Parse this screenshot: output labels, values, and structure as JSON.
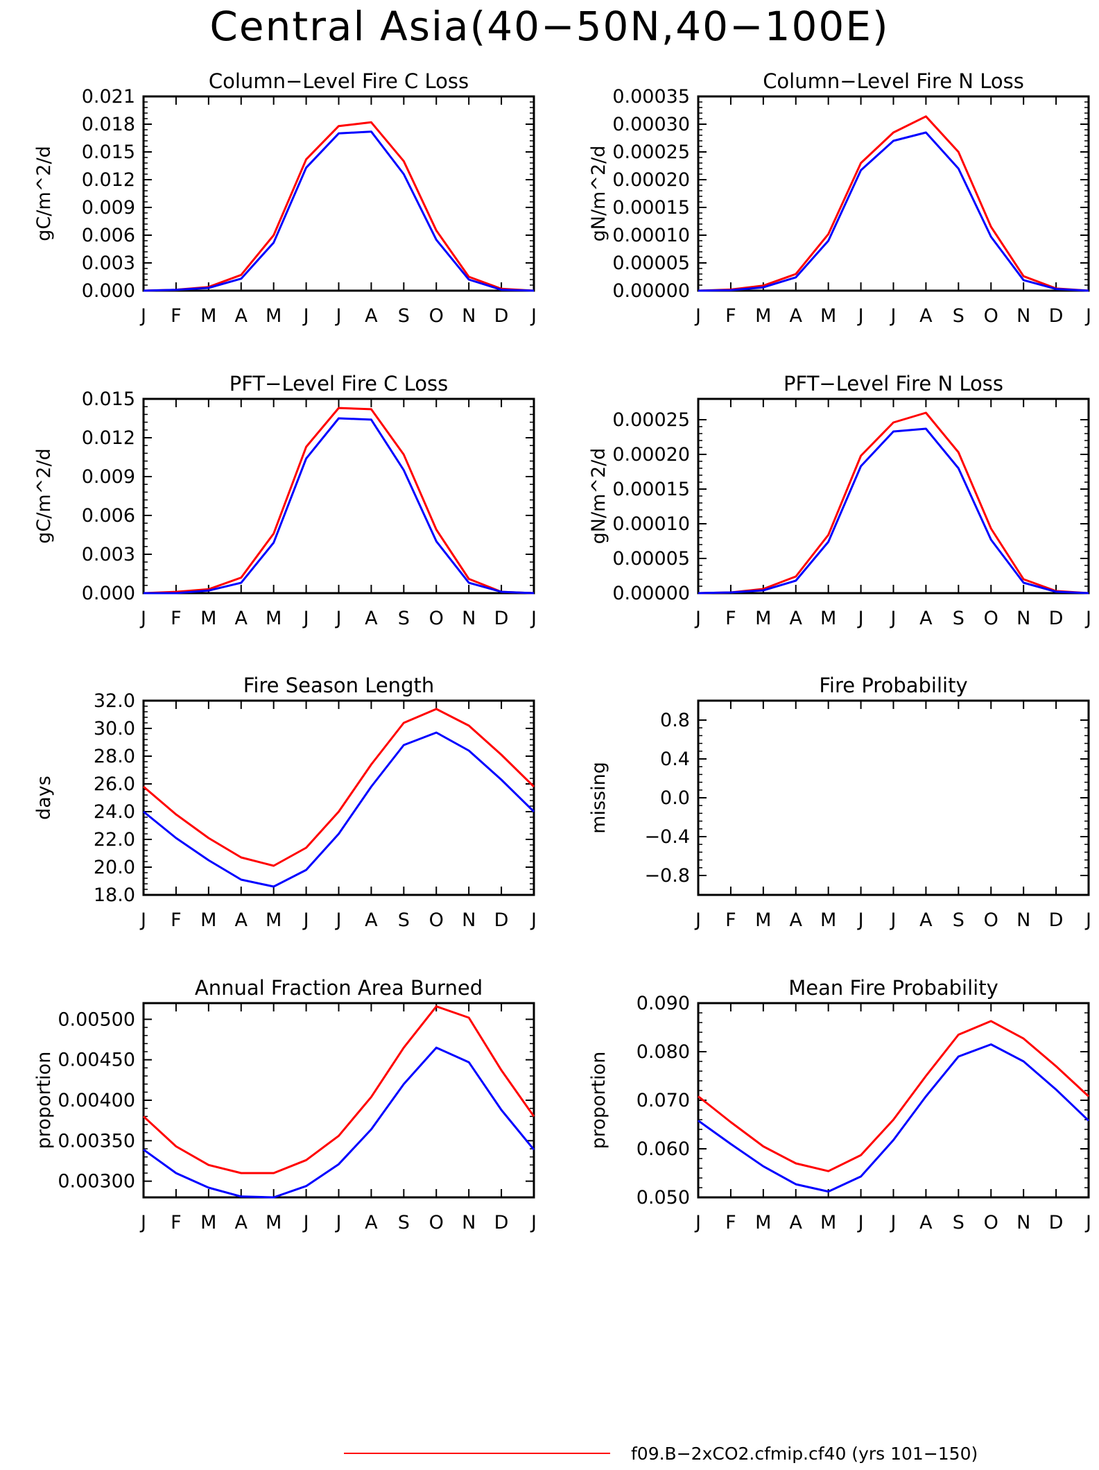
{
  "title": "Central Asia(40−50N,40−100E)",
  "months": [
    "J",
    "F",
    "M",
    "A",
    "M",
    "J",
    "J",
    "A",
    "S",
    "O",
    "N",
    "D",
    "J"
  ],
  "colors": {
    "series1": "#ff0000",
    "series2": "#0000ff",
    "axis": "#000000"
  },
  "legend": {
    "entries": [
      {
        "label": "f09.B−2xCO2.cfmip.cf40 (yrs 101−150)",
        "color": "#ff0000"
      }
    ]
  },
  "chart_data": [
    {
      "type": "line",
      "title": "Column−Level Fire C Loss",
      "ylabel": "gC/m^2/d",
      "ylim": [
        0,
        0.021
      ],
      "yticks": [
        0.0,
        0.003,
        0.006,
        0.009,
        0.012,
        0.015,
        0.018,
        0.021
      ],
      "ytick_labels": [
        "0.000",
        "0.003",
        "0.006",
        "0.009",
        "0.012",
        "0.015",
        "0.018",
        "0.021"
      ],
      "series": [
        {
          "color": "#ff0000",
          "values": [
            0.0,
            0.0001,
            0.0004,
            0.0017,
            0.006,
            0.0142,
            0.0178,
            0.0182,
            0.014,
            0.0065,
            0.0015,
            0.0002,
            0.0
          ]
        },
        {
          "color": "#0000ff",
          "values": [
            0.0,
            0.0001,
            0.0003,
            0.0013,
            0.0052,
            0.0133,
            0.017,
            0.0172,
            0.0126,
            0.0055,
            0.0012,
            0.0001,
            0.0
          ]
        }
      ]
    },
    {
      "type": "line",
      "title": "Column−Level Fire N Loss",
      "ylabel": "gN/m^2/d",
      "ylim": [
        0,
        0.00035
      ],
      "yticks": [
        0,
        5e-05,
        0.0001,
        0.00015,
        0.0002,
        0.00025,
        0.0003,
        0.00035
      ],
      "ytick_labels": [
        "0.00000",
        "0.00005",
        "0.00010",
        "0.00015",
        "0.00020",
        "0.00025",
        "0.00030",
        "0.00035"
      ],
      "series": [
        {
          "color": "#ff0000",
          "values": [
            0.0,
            2e-06,
            9e-06,
            3e-05,
            0.000102,
            0.00023,
            0.000285,
            0.000314,
            0.00025,
            0.000115,
            2.6e-05,
            4e-06,
            0.0
          ]
        },
        {
          "color": "#0000ff",
          "values": [
            0.0,
            1e-06,
            6e-06,
            2.4e-05,
            9e-05,
            0.000217,
            0.00027,
            0.000285,
            0.00022,
            9.7e-05,
            1.9e-05,
            3e-06,
            0.0
          ]
        }
      ]
    },
    {
      "type": "line",
      "title": "PFT−Level Fire C Loss",
      "ylabel": "gC/m^2/d",
      "ylim": [
        0,
        0.015
      ],
      "yticks": [
        0.0,
        0.003,
        0.006,
        0.009,
        0.012,
        0.015
      ],
      "ytick_labels": [
        "0.000",
        "0.003",
        "0.006",
        "0.009",
        "0.012",
        "0.015"
      ],
      "series": [
        {
          "color": "#ff0000",
          "values": [
            0.0,
            0.0001,
            0.0003,
            0.0012,
            0.0046,
            0.0113,
            0.0143,
            0.0142,
            0.0107,
            0.0049,
            0.0011,
            0.0001,
            0.0
          ]
        },
        {
          "color": "#0000ff",
          "values": [
            0.0,
            0.0,
            0.0002,
            0.0008,
            0.0039,
            0.0104,
            0.0135,
            0.0134,
            0.0095,
            0.004,
            0.0008,
            0.0001,
            0.0
          ]
        }
      ]
    },
    {
      "type": "line",
      "title": "PFT−Level Fire N Loss",
      "ylabel": "gN/m^2/d",
      "ylim": [
        0,
        0.00028
      ],
      "yticks": [
        0,
        5e-05,
        0.0001,
        0.00015,
        0.0002,
        0.00025
      ],
      "ytick_labels": [
        "0.00000",
        "0.00005",
        "0.00010",
        "0.00015",
        "0.00020",
        "0.00025"
      ],
      "series": [
        {
          "color": "#ff0000",
          "values": [
            0.0,
            1e-06,
            6e-06,
            2.4e-05,
            8.4e-05,
            0.000198,
            0.000246,
            0.00026,
            0.000203,
            9.3e-05,
            2e-05,
            3e-06,
            0.0
          ]
        },
        {
          "color": "#0000ff",
          "values": [
            0.0,
            1e-06,
            4e-06,
            1.8e-05,
            7.4e-05,
            0.000183,
            0.000233,
            0.000237,
            0.00018,
            7.7e-05,
            1.5e-05,
            2e-06,
            0.0
          ]
        }
      ]
    },
    {
      "type": "line",
      "title": "Fire Season Length",
      "ylabel": "days",
      "ylim": [
        18,
        32
      ],
      "yticks": [
        18,
        20,
        22,
        24,
        26,
        28,
        30,
        32
      ],
      "ytick_labels": [
        "18.0",
        "20.0",
        "22.0",
        "24.0",
        "26.0",
        "28.0",
        "30.0",
        "32.0"
      ],
      "series": [
        {
          "color": "#ff0000",
          "values": [
            25.8,
            23.8,
            22.1,
            20.7,
            20.1,
            21.4,
            24.0,
            27.4,
            30.4,
            31.4,
            30.2,
            28.1,
            25.8
          ]
        },
        {
          "color": "#0000ff",
          "values": [
            24.0,
            22.1,
            20.5,
            19.1,
            18.6,
            19.8,
            22.4,
            25.8,
            28.8,
            29.7,
            28.4,
            26.3,
            24.0
          ]
        }
      ]
    },
    {
      "type": "line",
      "title": "Fire Probability",
      "ylabel": "missing",
      "ylim": [
        -1,
        1
      ],
      "yticks": [
        -0.8,
        -0.4,
        0.0,
        0.4,
        0.8
      ],
      "ytick_labels": [
        "−0.8",
        "−0.4",
        "0.0",
        "0.4",
        "0.8"
      ],
      "series": []
    },
    {
      "type": "line",
      "title": "Annual Fraction Area Burned",
      "ylabel": "proportion",
      "ylim": [
        0.0028,
        0.0052
      ],
      "yticks": [
        0.003,
        0.0035,
        0.004,
        0.0045,
        0.005
      ],
      "ytick_labels": [
        "0.00300",
        "0.00350",
        "0.00400",
        "0.00450",
        "0.00500"
      ],
      "series": [
        {
          "color": "#ff0000",
          "values": [
            0.0038,
            0.00343,
            0.0032,
            0.0031,
            0.0031,
            0.00326,
            0.00356,
            0.00404,
            0.00465,
            0.00516,
            0.00502,
            0.00437,
            0.0038
          ]
        },
        {
          "color": "#0000ff",
          "values": [
            0.00339,
            0.0031,
            0.00292,
            0.00281,
            0.0028,
            0.00294,
            0.00321,
            0.00364,
            0.0042,
            0.00465,
            0.00447,
            0.00388,
            0.00339
          ]
        }
      ]
    },
    {
      "type": "line",
      "title": "Mean Fire Probability",
      "ylabel": "proportion",
      "ylim": [
        0.05,
        0.09
      ],
      "yticks": [
        0.05,
        0.06,
        0.07,
        0.08,
        0.09
      ],
      "ytick_labels": [
        "0.050",
        "0.060",
        "0.070",
        "0.080",
        "0.090"
      ],
      "series": [
        {
          "color": "#ff0000",
          "values": [
            0.0708,
            0.0655,
            0.0605,
            0.057,
            0.0554,
            0.0587,
            0.066,
            0.075,
            0.0835,
            0.0863,
            0.0827,
            0.077,
            0.0708
          ]
        },
        {
          "color": "#0000ff",
          "values": [
            0.0658,
            0.061,
            0.0564,
            0.0527,
            0.0512,
            0.0543,
            0.0618,
            0.0708,
            0.079,
            0.0815,
            0.078,
            0.0722,
            0.0658
          ]
        }
      ]
    }
  ]
}
